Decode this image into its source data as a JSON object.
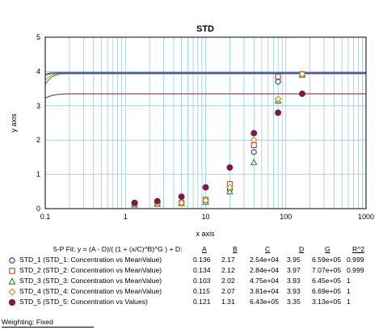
{
  "chart_data": {
    "type": "scatter",
    "title": "STD",
    "xlabel": "x axis",
    "ylabel": "y axis",
    "xscale": "log",
    "xlim": [
      0.1,
      1000
    ],
    "ylim": [
      0,
      5
    ],
    "x_ticks": [
      0.1,
      1,
      10,
      100,
      1000
    ],
    "x_tick_labels": [
      "0.1",
      "1",
      "10",
      "100",
      "1000"
    ],
    "y_ticks": [
      0,
      1,
      2,
      3,
      4,
      5
    ],
    "y_tick_labels": [
      "0",
      "1",
      "2",
      "3",
      "4",
      "5"
    ],
    "grid": true,
    "fit_model": "5-P Fit",
    "series": [
      {
        "id": "std1",
        "marker": "circle-open",
        "color": "#2a2aa8",
        "fit": {
          "A": 0.136,
          "B": 2.17,
          "C": 25400.0,
          "D": 3.95,
          "G": 659000.0
        },
        "points": [
          [
            1.3,
            0.14
          ],
          [
            2.5,
            0.16
          ],
          [
            5,
            0.17
          ],
          [
            10,
            0.22
          ],
          [
            20,
            0.55
          ],
          [
            40,
            1.65
          ],
          [
            80,
            3.7
          ],
          [
            160,
            3.93
          ]
        ]
      },
      {
        "id": "std2",
        "marker": "square-open",
        "color": "#b24a32",
        "fit": {
          "A": 0.134,
          "B": 2.12,
          "C": 28400.0,
          "D": 3.97,
          "G": 707000.0
        },
        "points": [
          [
            1.3,
            0.14
          ],
          [
            2.5,
            0.15
          ],
          [
            5,
            0.17
          ],
          [
            10,
            0.26
          ],
          [
            20,
            0.72
          ],
          [
            40,
            1.85
          ],
          [
            80,
            3.85
          ],
          [
            160,
            3.92
          ]
        ]
      },
      {
        "id": "std3",
        "marker": "triangle-open",
        "color": "#2a8a2a",
        "fit": {
          "A": 0.103,
          "B": 2.02,
          "C": 47500.0,
          "D": 3.93,
          "G": 645000.0
        },
        "points": [
          [
            1.3,
            0.12
          ],
          [
            2.5,
            0.14
          ],
          [
            5,
            0.16
          ],
          [
            10,
            0.2
          ],
          [
            20,
            0.5
          ],
          [
            40,
            1.35
          ],
          [
            80,
            3.15
          ],
          [
            160,
            3.9
          ]
        ]
      },
      {
        "id": "std4",
        "marker": "diamond-open",
        "color": "#d08a20",
        "fit": {
          "A": 0.115,
          "B": 2.07,
          "C": 38100.0,
          "D": 3.93,
          "G": 669000.0
        },
        "points": [
          [
            1.3,
            0.13
          ],
          [
            2.5,
            0.15
          ],
          [
            5,
            0.17
          ],
          [
            10,
            0.24
          ],
          [
            20,
            0.62
          ],
          [
            40,
            2.0
          ],
          [
            80,
            3.2
          ],
          [
            160,
            3.93
          ]
        ]
      },
      {
        "id": "std5",
        "marker": "circle-filled",
        "color": "#7a1a4a",
        "fit": {
          "A": 0.121,
          "B": 1.31,
          "C": 643000.0,
          "D": 3.35,
          "G": 313000.0
        },
        "points": [
          [
            1.3,
            0.17
          ],
          [
            2.5,
            0.22
          ],
          [
            5,
            0.35
          ],
          [
            10,
            0.62
          ],
          [
            20,
            1.2
          ],
          [
            40,
            2.2
          ],
          [
            80,
            2.8
          ],
          [
            160,
            3.35
          ]
        ]
      }
    ]
  },
  "fit_table": {
    "formula": "5-P Fit: y = (A - D)/( (1 + (x/C)^B)^G ) + D:",
    "headers": [
      "A",
      "B",
      "C",
      "D",
      "G",
      "R^2"
    ],
    "rows": [
      {
        "label": "STD_1 (STD_1: Concentration vs MeanValue)",
        "A": "0.136",
        "B": "2.17",
        "C": "2.54e+04",
        "D": "3.95",
        "G": "6.59e+05",
        "R2": "0.999"
      },
      {
        "label": "STD_2 (STD_2: Concentration vs MeanValue)",
        "A": "0.134",
        "B": "2.12",
        "C": "2.84e+04",
        "D": "3.97",
        "G": "7.07e+05",
        "R2": "0.999"
      },
      {
        "label": "STD_3 (STD_3: Concentration vs MeanValue)",
        "A": "0.103",
        "B": "2.02",
        "C": "4.75e+04",
        "D": "3.93",
        "G": "6.45e+05",
        "R2": "1"
      },
      {
        "label": "STD_4 (STD_4: Concentration vs MeanValue)",
        "A": "0.115",
        "B": "2.07",
        "C": "3.81e+04",
        "D": "3.93",
        "G": "6.69e+05",
        "R2": "1"
      },
      {
        "label": "STD_5 (STD_5: Concentration vs Values)",
        "A": "0.121",
        "B": "1.31",
        "C": "6.43e+05",
        "D": "3.35",
        "G": "3.13e+05",
        "R2": "1"
      }
    ]
  },
  "footer": {
    "weighting": "Weighting: Fixed"
  }
}
